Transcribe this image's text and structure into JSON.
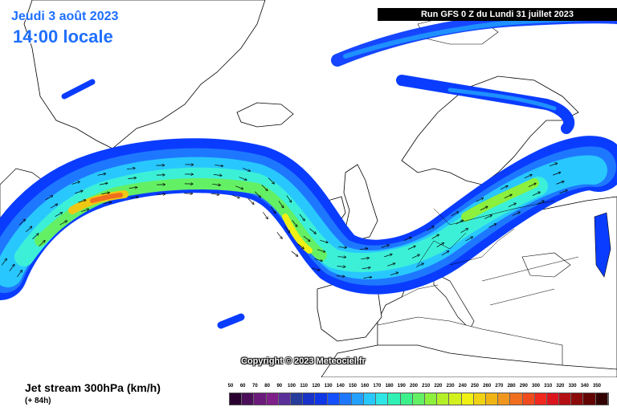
{
  "header": {
    "date_line": "Jeudi 3 août 2023",
    "time_line": "14:00 locale",
    "run_info": "Run GFS 0 Z du Lundi 31 juillet 2023"
  },
  "copyright": "Copyright © 2023 Meteociel.fr",
  "product": {
    "title": "Jet stream 300hPa (km/h)",
    "forecast_step": "(+ 84h)"
  },
  "legend": {
    "labels": [
      "50",
      "60",
      "70",
      "80",
      "90",
      "100",
      "110",
      "120",
      "130",
      "140",
      "150",
      "160",
      "170",
      "180",
      "190",
      "200",
      "210",
      "220",
      "230",
      "240",
      "250",
      "260",
      "270",
      "280",
      "290",
      "300",
      "310",
      "320",
      "330",
      "340",
      "350"
    ],
    "colors": [
      "#2a0030",
      "#4b0f5a",
      "#6a1a7a",
      "#7f1f8a",
      "#5a2f9a",
      "#283c9c",
      "#1932c8",
      "#0f37e6",
      "#1450ff",
      "#1e78ff",
      "#23a0ff",
      "#28c8ff",
      "#2ee6e6",
      "#30f0b4",
      "#3cf08c",
      "#64f064",
      "#8cf03c",
      "#b4f028",
      "#d2f01e",
      "#f0f014",
      "#f0d214",
      "#f0b414",
      "#f0961e",
      "#f06e1e",
      "#f04b1e",
      "#f0281e",
      "#dc141e",
      "#b40f14",
      "#8c0a0a",
      "#640505",
      "#320000"
    ]
  },
  "map": {
    "land_color": "#ffffff",
    "coastline_color": "#000000",
    "jet_colors": {
      "outer": "#0a3cff",
      "mid": "#1e90ff",
      "inner": "#3cf0d8",
      "core": "#64f064",
      "peak": "#f0c814",
      "max": "#f06e1e"
    }
  }
}
